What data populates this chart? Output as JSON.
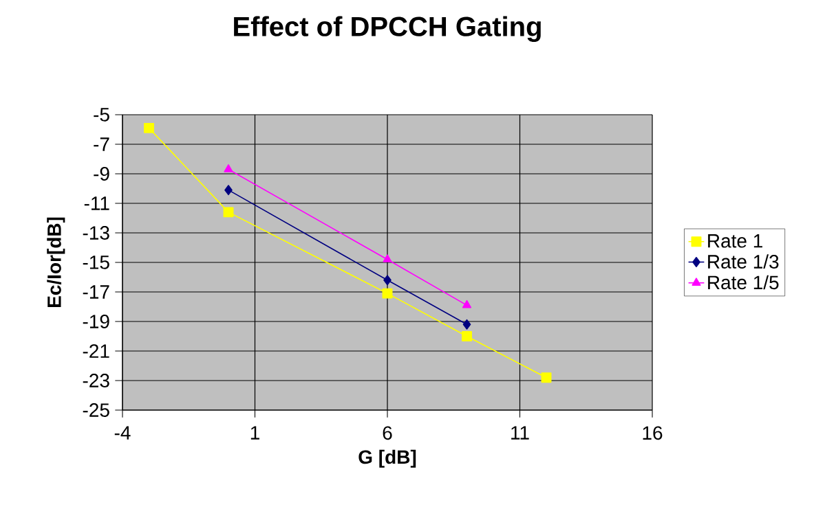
{
  "chart_data": {
    "type": "line",
    "title": "Effect of DPCCH Gating",
    "xlabel": "G [dB]",
    "ylabel": "Ec/Ior[dB]",
    "xlim": [
      -4,
      16
    ],
    "xticks": [
      -4,
      1,
      6,
      11,
      16
    ],
    "ylim": [
      -25,
      -5
    ],
    "yticks": [
      -25,
      -23,
      -21,
      -19,
      -17,
      -15,
      -13,
      -11,
      -9,
      -7,
      -5
    ],
    "grid": true,
    "legend": "right",
    "series": [
      {
        "name": "Rate 1",
        "color": "#ffff00",
        "marker": "square",
        "x": [
          -3,
          0,
          6,
          9,
          12
        ],
        "values": [
          -5.9,
          -11.6,
          -17.1,
          -20.0,
          -22.8
        ]
      },
      {
        "name": "Rate 1/3",
        "color": "#000080",
        "marker": "diamond",
        "x": [
          0,
          6,
          9
        ],
        "values": [
          -10.1,
          -16.2,
          -19.2
        ]
      },
      {
        "name": "Rate 1/5",
        "color": "#ff00ff",
        "marker": "triangle",
        "x": [
          0,
          6,
          9
        ],
        "values": [
          -8.7,
          -14.8,
          -17.9
        ]
      }
    ]
  }
}
